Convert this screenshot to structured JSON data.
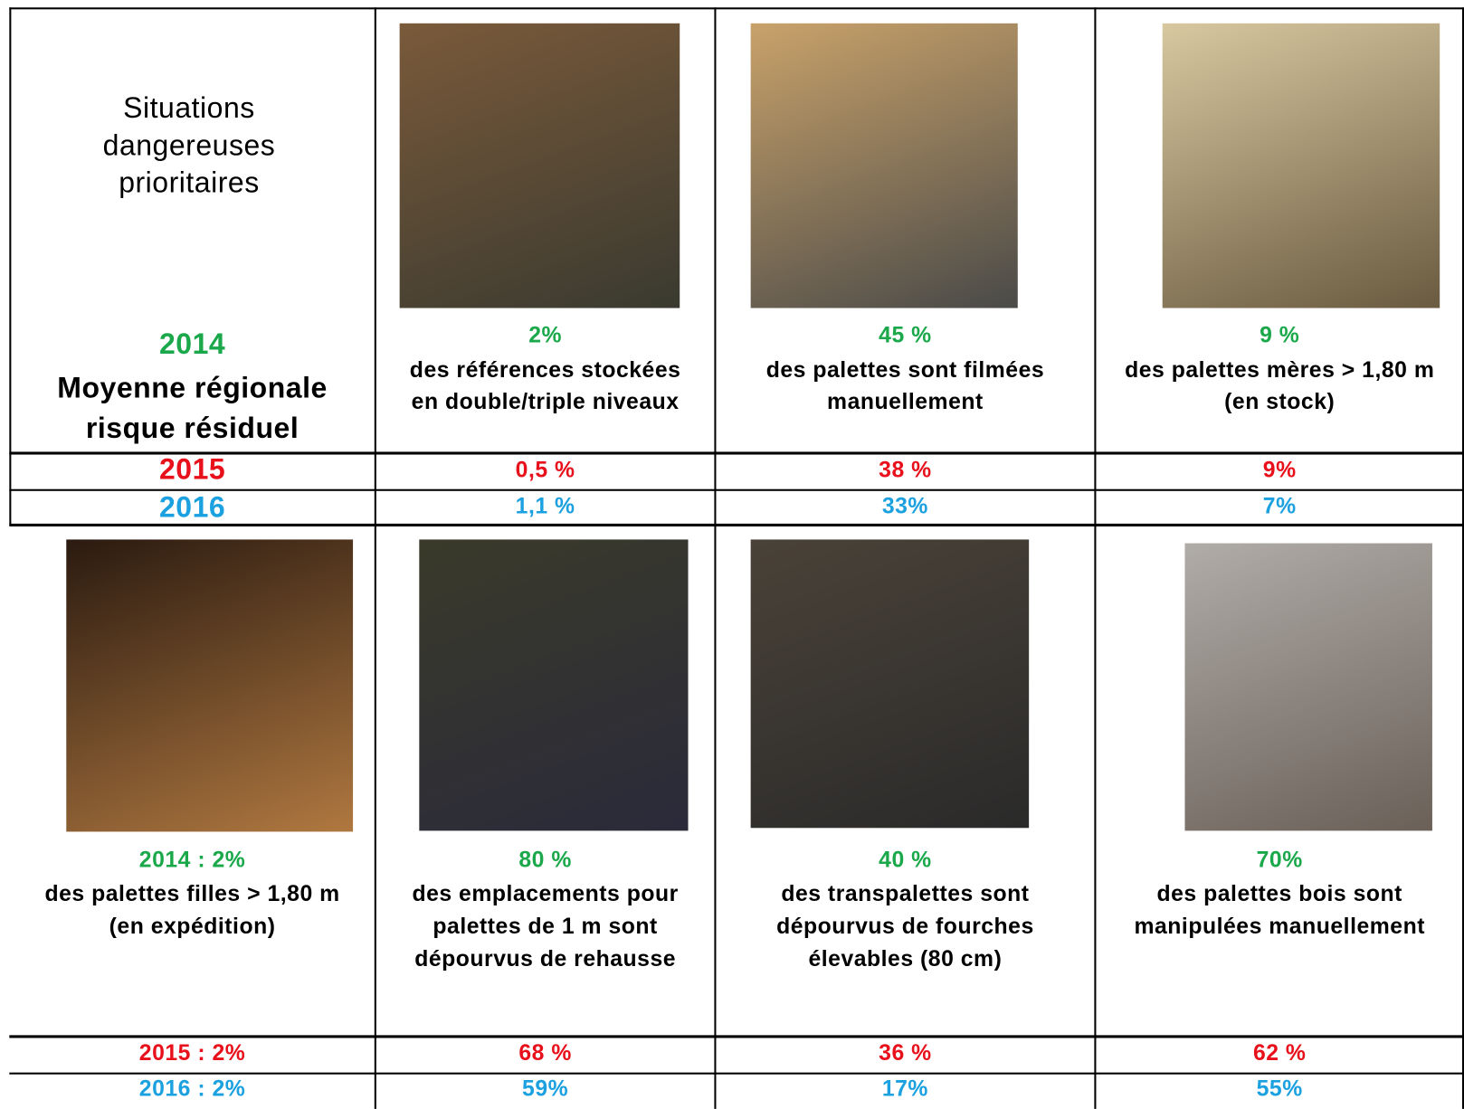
{
  "header": {
    "title": "Situations dangereuses prioritaires",
    "year_2014": "2014",
    "subtitle": "Moyenne régionale risque résiduel",
    "year_2015": "2015",
    "year_2016": "2016"
  },
  "top_row": [
    {
      "value_2014": "2%",
      "description": "des références stockées en double/triple niveaux",
      "value_2015": "0,5 %",
      "value_2016": "1,1 %"
    },
    {
      "value_2014": "45 %",
      "description": "des palettes sont filmées manuellement",
      "value_2015": "38 %",
      "value_2016": "33%"
    },
    {
      "value_2014": "9 %",
      "description": "des palettes mères > 1,80 m (en stock)",
      "value_2015": "9%",
      "value_2016": "7%"
    }
  ],
  "bottom_row": [
    {
      "value_2014": "2014 : 2%",
      "description": "des palettes filles > 1,80 m (en expédition)",
      "value_2015": "2015 : 2%",
      "value_2016": "2016 : 2%"
    },
    {
      "value_2014": "80 %",
      "description": "des emplacements pour palettes de 1 m sont dépourvus de rehausse",
      "value_2015": "68 %",
      "value_2016": "59%"
    },
    {
      "value_2014": "40 %",
      "description": "des transpalettes sont dépourvus de fourches élevables (80 cm)",
      "value_2015": "36 %",
      "value_2016": "17%"
    },
    {
      "value_2014": "70%",
      "description": "des palettes bois sont manipulées manuellement",
      "value_2015": "62 %",
      "value_2016": "55%"
    }
  ]
}
